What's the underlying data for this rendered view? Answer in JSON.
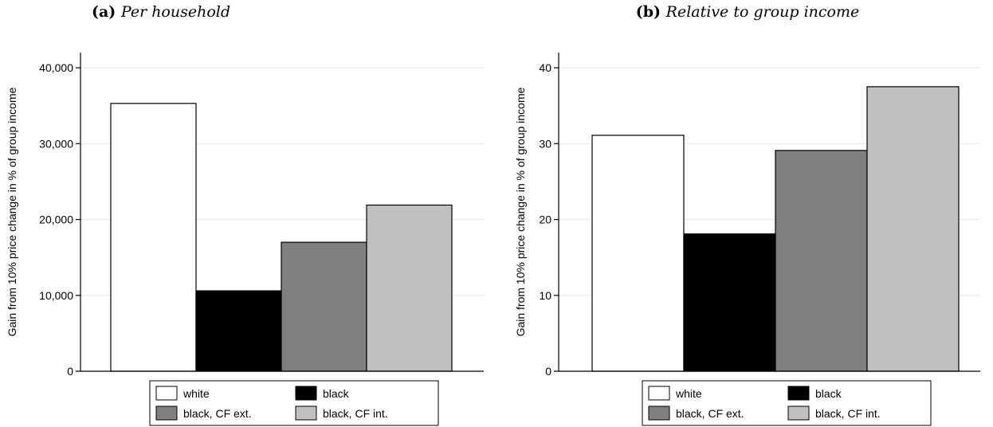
{
  "chart_data": [
    {
      "type": "bar",
      "title_tag": "(a)",
      "title": "Per household",
      "ylabel": "Gain from 10% price change in % of group income",
      "ylim": [
        0,
        42000
      ],
      "yticks": [
        0,
        10000,
        20000,
        30000,
        40000
      ],
      "ytick_labels": [
        "0",
        "10,000",
        "20,000",
        "30,000",
        "40,000"
      ],
      "grid": true,
      "series": [
        {
          "name": "white",
          "color": "#ffffff",
          "values": [
            35300
          ]
        },
        {
          "name": "black",
          "color": "#000000",
          "values": [
            10600
          ]
        },
        {
          "name": "black, CF ext.",
          "color": "#808080",
          "values": [
            17000
          ]
        },
        {
          "name": "black, CF int.",
          "color": "#c0c0c0",
          "values": [
            21900
          ]
        }
      ],
      "legend_position": "bottom"
    },
    {
      "type": "bar",
      "title_tag": "(b)",
      "title": "Relative to group income",
      "ylabel": "Gain from 10% price change in % of group income",
      "ylim": [
        0,
        42
      ],
      "yticks": [
        0,
        10,
        20,
        30,
        40
      ],
      "ytick_labels": [
        "0",
        "10",
        "20",
        "30",
        "40"
      ],
      "grid": true,
      "series": [
        {
          "name": "white",
          "color": "#ffffff",
          "values": [
            31.1
          ]
        },
        {
          "name": "black",
          "color": "#000000",
          "values": [
            18.1
          ]
        },
        {
          "name": "black, CF ext.",
          "color": "#808080",
          "values": [
            29.1
          ]
        },
        {
          "name": "black, CF int.",
          "color": "#c0c0c0",
          "values": [
            37.5
          ]
        }
      ],
      "legend_position": "bottom"
    }
  ]
}
